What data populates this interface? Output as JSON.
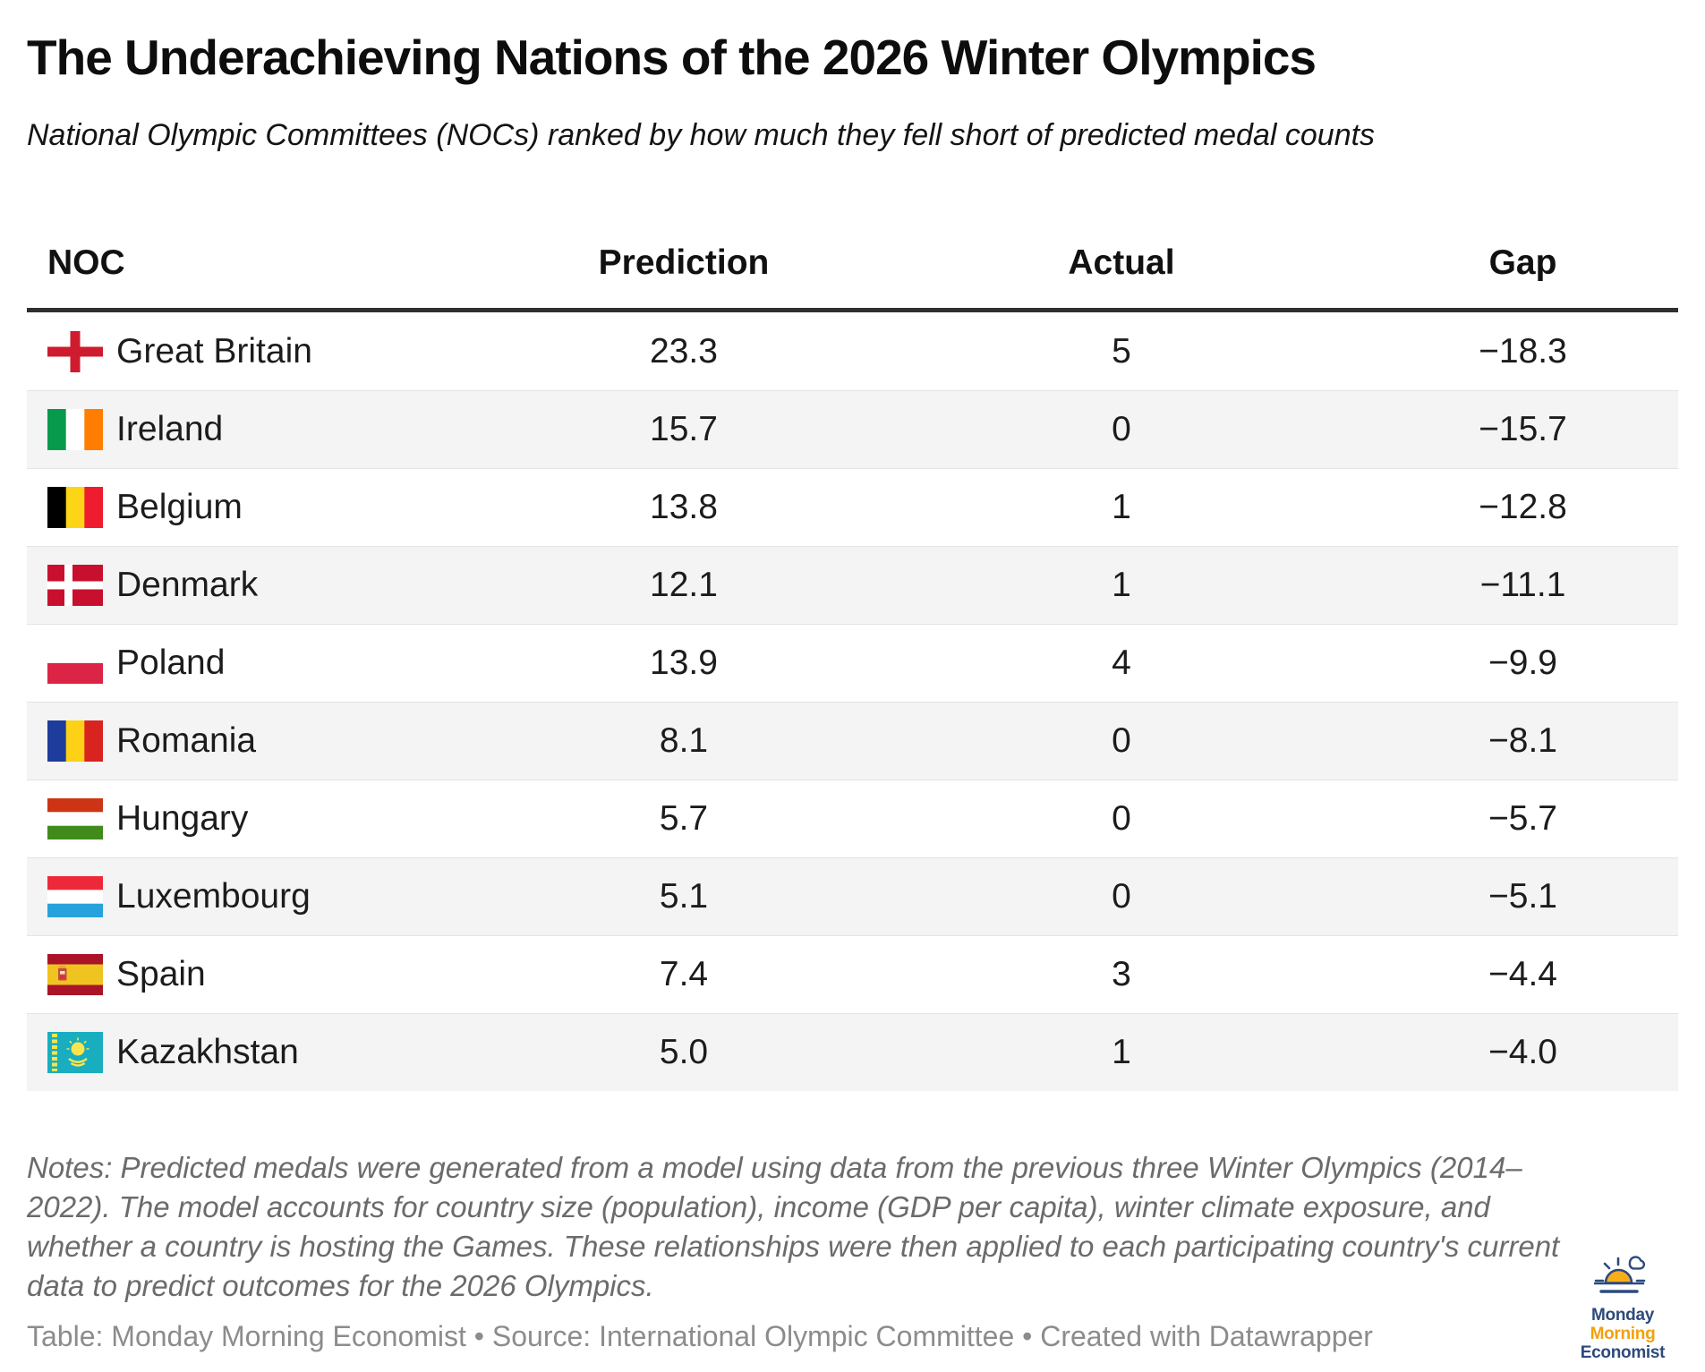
{
  "header": {
    "title": "The Underachieving Nations of the 2026 Winter Olympics",
    "subtitle": "National Olympic Committees (NOCs) ranked by how much they fell short of predicted medal counts"
  },
  "table": {
    "columns": [
      "NOC",
      "Prediction",
      "Actual",
      "Gap"
    ],
    "rows": [
      {
        "noc": "Great Britain",
        "flag_icon": "england-flag-icon",
        "prediction": "23.3",
        "actual": "5",
        "gap": "−18.3"
      },
      {
        "noc": "Ireland",
        "flag_icon": "ireland-flag-icon",
        "prediction": "15.7",
        "actual": "0",
        "gap": "−15.7"
      },
      {
        "noc": "Belgium",
        "flag_icon": "belgium-flag-icon",
        "prediction": "13.8",
        "actual": "1",
        "gap": "−12.8"
      },
      {
        "noc": "Denmark",
        "flag_icon": "denmark-flag-icon",
        "prediction": "12.1",
        "actual": "1",
        "gap": "−11.1"
      },
      {
        "noc": "Poland",
        "flag_icon": "poland-flag-icon",
        "prediction": "13.9",
        "actual": "4",
        "gap": "−9.9"
      },
      {
        "noc": "Romania",
        "flag_icon": "romania-flag-icon",
        "prediction": "8.1",
        "actual": "0",
        "gap": "−8.1"
      },
      {
        "noc": "Hungary",
        "flag_icon": "hungary-flag-icon",
        "prediction": "5.7",
        "actual": "0",
        "gap": "−5.7"
      },
      {
        "noc": "Luxembourg",
        "flag_icon": "luxembourg-flag-icon",
        "prediction": "5.1",
        "actual": "0",
        "gap": "−5.1"
      },
      {
        "noc": "Spain",
        "flag_icon": "spain-flag-icon",
        "prediction": "7.4",
        "actual": "3",
        "gap": "−4.4"
      },
      {
        "noc": "Kazakhstan",
        "flag_icon": "kazakhstan-flag-icon",
        "prediction": "5.0",
        "actual": "1",
        "gap": "−4.0"
      }
    ]
  },
  "notes_lines": [
    "Notes: Predicted medals were generated from a model using data from the previous three Winter Olympics (2014–",
    "2022). The model accounts for country size (population), income (GDP per capita), winter climate exposure, and",
    "whether a country is hosting the Games. These relationships were then applied to each participating country's current",
    "data to predict outcomes for the 2026 Olympics."
  ],
  "footer": {
    "credit": "Table: Monday Morning Economist • Source: International Olympic Committee  • Created with Datawrapper"
  },
  "logo": {
    "line1": "Monday",
    "line2": "Morning",
    "line3": "Economist"
  },
  "colors": {
    "row_stripe": "#f4f4f4",
    "row_separator": "#e3e3e3",
    "header_rule": "#2f2f2f",
    "notes_text": "#6b6b6b",
    "credit_text": "#8c8c8c",
    "logo_navy": "#2d4a7c",
    "logo_orange": "#f1a10d"
  },
  "chart_data": {
    "type": "table",
    "title": "The Underachieving Nations of the 2026 Winter Olympics",
    "subtitle": "National Olympic Committees (NOCs) ranked by how much they fell short of predicted medal counts",
    "columns": [
      "NOC",
      "Prediction",
      "Actual",
      "Gap"
    ],
    "rows": [
      [
        "Great Britain",
        23.3,
        5,
        -18.3
      ],
      [
        "Ireland",
        15.7,
        0,
        -15.7
      ],
      [
        "Belgium",
        13.8,
        1,
        -12.8
      ],
      [
        "Denmark",
        12.1,
        1,
        -11.1
      ],
      [
        "Poland",
        13.9,
        4,
        -9.9
      ],
      [
        "Romania",
        8.1,
        0,
        -8.1
      ],
      [
        "Hungary",
        5.7,
        0,
        -5.7
      ],
      [
        "Luxembourg",
        5.1,
        0,
        -5.1
      ],
      [
        "Spain",
        7.4,
        3,
        -4.4
      ],
      [
        "Kazakhstan",
        5.0,
        1,
        -4.0
      ]
    ]
  }
}
